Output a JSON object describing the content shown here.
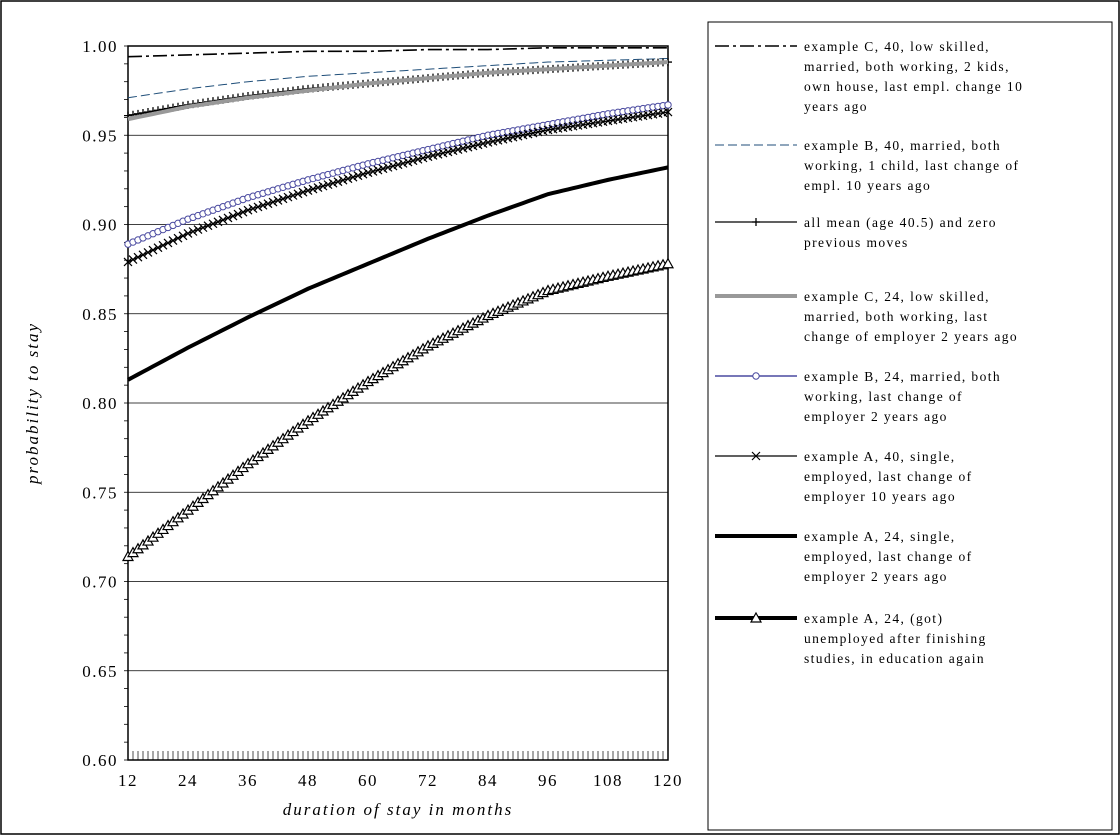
{
  "chart_data": {
    "type": "line",
    "xlabel": "duration of stay in months",
    "ylabel": "probability to stay",
    "xlim": [
      12,
      120
    ],
    "ylim": [
      0.6,
      1.0
    ],
    "x_ticks": [
      "12",
      "24",
      "36",
      "48",
      "60",
      "72",
      "84",
      "96",
      "108",
      "120"
    ],
    "y_ticks": [
      "0.60",
      "0.65",
      "0.70",
      "0.75",
      "0.80",
      "0.85",
      "0.90",
      "0.95",
      "1.00"
    ],
    "grid": "horizontal",
    "legend_position": "right",
    "series": [
      {
        "name": "example C, 40, low skilled, married, both working, 2 kids, own house, last empl. change 10 years ago",
        "legend_lines": [
          "example C, 40, low skilled,",
          "married, both working, 2 kids,",
          "own house, last empl. change 10",
          "years ago"
        ],
        "style": "dashdot",
        "color": "#000000",
        "marker": "none",
        "x": [
          12,
          24,
          36,
          48,
          60,
          72,
          84,
          96,
          108,
          120
        ],
        "values": [
          0.994,
          0.995,
          0.996,
          0.997,
          0.997,
          0.998,
          0.998,
          0.999,
          0.999,
          0.999
        ]
      },
      {
        "name": "example B, 40, married, both working, 1 child, last change of empl. 10 years ago",
        "legend_lines": [
          "example B, 40, married, both",
          "working, 1 child, last change of",
          "empl. 10 years ago"
        ],
        "style": "dashed",
        "color": "#1f4e79",
        "marker": "none",
        "x": [
          12,
          24,
          36,
          48,
          60,
          72,
          84,
          96,
          108,
          120
        ],
        "values": [
          0.971,
          0.976,
          0.98,
          0.983,
          0.985,
          0.987,
          0.989,
          0.991,
          0.992,
          0.993
        ]
      },
      {
        "name": "all mean (age 40.5) and zero previous moves",
        "legend_lines": [
          "all mean (age 40.5) and zero",
          "previous moves"
        ],
        "style": "solid",
        "color": "#000000",
        "marker": "plus",
        "x": [
          12,
          24,
          36,
          48,
          60,
          72,
          84,
          96,
          108,
          120
        ],
        "values": [
          0.961,
          0.967,
          0.972,
          0.976,
          0.979,
          0.982,
          0.985,
          0.987,
          0.989,
          0.991
        ]
      },
      {
        "name": "example C, 24, low skilled, married, both working, last change of employer 2 years ago",
        "legend_lines": [
          "example C, 24, low skilled,",
          "married, both working, last",
          "change of employer 2 years ago"
        ],
        "style": "solid",
        "color": "#999999",
        "marker": "none",
        "x": [
          12,
          24,
          36,
          48,
          60,
          72,
          84,
          96,
          108,
          120
        ],
        "values": [
          0.959,
          0.966,
          0.971,
          0.975,
          0.979,
          0.982,
          0.985,
          0.987,
          0.989,
          0.991
        ]
      },
      {
        "name": "example B, 24, married, both working, last change of employer 2 years ago",
        "legend_lines": [
          "example B, 24, married, both",
          "working, last change of",
          "employer 2 years ago"
        ],
        "style": "solid",
        "color": "#4a4aa0",
        "marker": "circle",
        "x": [
          12,
          24,
          36,
          48,
          60,
          72,
          84,
          96,
          108,
          120
        ],
        "values": [
          0.889,
          0.903,
          0.915,
          0.925,
          0.934,
          0.942,
          0.95,
          0.956,
          0.962,
          0.967
        ]
      },
      {
        "name": "example A, 40, single, employed, last change of employer 10 years ago",
        "legend_lines": [
          "example A, 40, single,",
          "employed, last change of",
          "employer 10 years ago"
        ],
        "style": "solid",
        "color": "#000000",
        "marker": "x",
        "x": [
          12,
          24,
          36,
          48,
          60,
          72,
          84,
          96,
          108,
          120
        ],
        "values": [
          0.879,
          0.895,
          0.908,
          0.919,
          0.929,
          0.938,
          0.946,
          0.953,
          0.958,
          0.963
        ]
      },
      {
        "name": "example A, 24, single, employed, last change of employer 2 years ago",
        "legend_lines": [
          "example A, 24, single,",
          "employed, last change of",
          "employer 2 years ago"
        ],
        "style": "thick",
        "color": "#000000",
        "marker": "none",
        "x": [
          12,
          24,
          36,
          48,
          60,
          72,
          84,
          96,
          108,
          120
        ],
        "values": [
          0.813,
          0.831,
          0.848,
          0.864,
          0.878,
          0.892,
          0.905,
          0.917,
          0.925,
          0.932
        ]
      },
      {
        "name": "example A, 24, (got) unemployed after finishing studies, in education again",
        "legend_lines": [
          "example A, 24, (got)",
          "unemployed after finishing",
          "studies, in education again"
        ],
        "style": "thick",
        "color": "#000000",
        "marker": "triangle",
        "x": [
          12,
          24,
          36,
          48,
          60,
          72,
          84,
          96,
          108,
          120
        ],
        "values": [
          0.714,
          0.74,
          0.766,
          0.79,
          0.812,
          0.832,
          0.849,
          0.863,
          0.871,
          0.878
        ]
      }
    ]
  }
}
